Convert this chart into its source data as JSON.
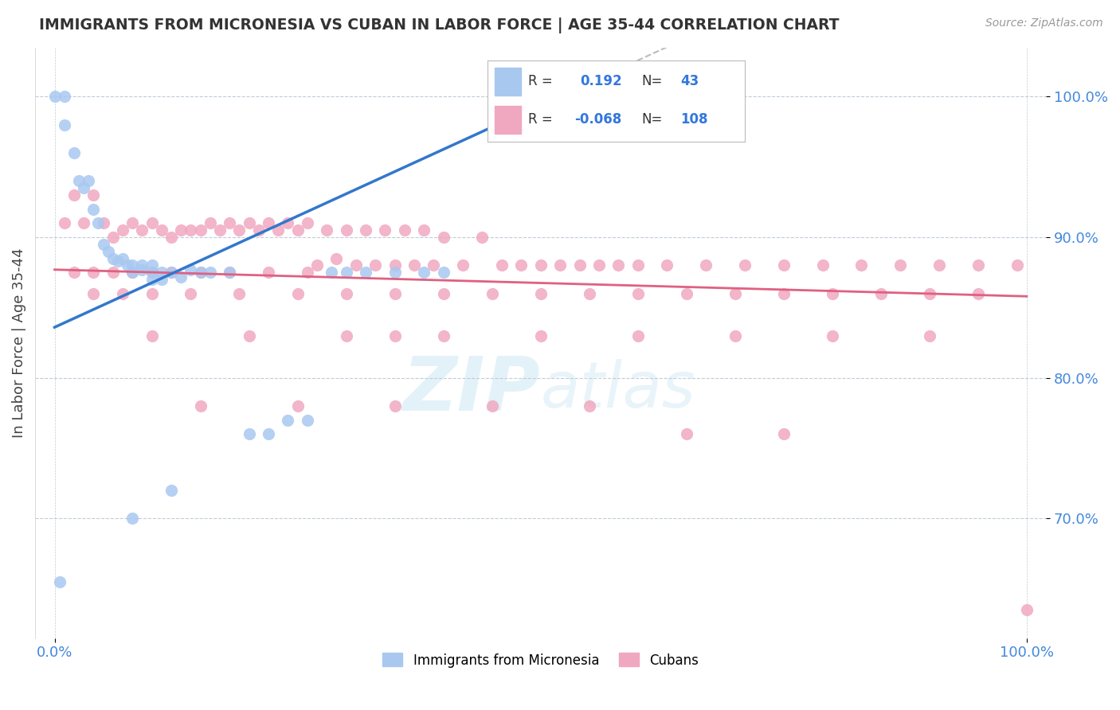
{
  "title": "IMMIGRANTS FROM MICRONESIA VS CUBAN IN LABOR FORCE | AGE 35-44 CORRELATION CHART",
  "source_text": "Source: ZipAtlas.com",
  "ylabel": "In Labor Force | Age 35-44",
  "xlim": [
    -0.02,
    1.02
  ],
  "ylim": [
    0.615,
    1.035
  ],
  "micronesia_R": 0.192,
  "micronesia_N": 43,
  "cuban_R": -0.068,
  "cuban_N": 108,
  "micronesia_color": "#a8c8f0",
  "cuban_color": "#f0a8c0",
  "micronesia_line_color": "#3377cc",
  "cuban_line_color": "#e06080",
  "background_color": "#ffffff",
  "watermark_color": "#cce8f4",
  "ytick_labels": [
    "70.0%",
    "80.0%",
    "90.0%",
    "100.0%"
  ],
  "ytick_values": [
    0.7,
    0.8,
    0.9,
    1.0
  ],
  "xtick_labels": [
    "0.0%",
    "100.0%"
  ],
  "xtick_values": [
    0.0,
    1.0
  ],
  "mic_line_x0": 0.0,
  "mic_line_y0": 0.836,
  "mic_line_x1": 0.55,
  "mic_line_y1": 1.01,
  "cub_line_x0": 0.0,
  "cub_line_y0": 0.877,
  "cub_line_x1": 1.0,
  "cub_line_y1": 0.858,
  "micronesia_x": [
    0.0,
    0.01,
    0.01,
    0.02,
    0.025,
    0.03,
    0.035,
    0.04,
    0.045,
    0.05,
    0.055,
    0.06,
    0.065,
    0.07,
    0.075,
    0.08,
    0.08,
    0.09,
    0.09,
    0.1,
    0.1,
    0.1,
    0.11,
    0.11,
    0.12,
    0.13,
    0.14,
    0.15,
    0.16,
    0.18,
    0.2,
    0.22,
    0.24,
    0.26,
    0.285,
    0.3,
    0.32,
    0.35,
    0.38,
    0.4,
    0.12,
    0.08,
    0.005
  ],
  "micronesia_y": [
    1.0,
    0.98,
    1.0,
    0.96,
    0.94,
    0.935,
    0.94,
    0.92,
    0.91,
    0.895,
    0.89,
    0.885,
    0.883,
    0.885,
    0.88,
    0.88,
    0.875,
    0.877,
    0.88,
    0.875,
    0.87,
    0.88,
    0.875,
    0.87,
    0.875,
    0.872,
    0.877,
    0.875,
    0.875,
    0.875,
    0.76,
    0.76,
    0.77,
    0.77,
    0.875,
    0.875,
    0.875,
    0.875,
    0.875,
    0.875,
    0.72,
    0.7,
    0.655
  ],
  "cuban_x": [
    0.01,
    0.02,
    0.03,
    0.04,
    0.05,
    0.06,
    0.07,
    0.08,
    0.09,
    0.1,
    0.11,
    0.12,
    0.13,
    0.14,
    0.15,
    0.16,
    0.17,
    0.18,
    0.19,
    0.2,
    0.21,
    0.22,
    0.23,
    0.24,
    0.25,
    0.26,
    0.27,
    0.28,
    0.29,
    0.3,
    0.31,
    0.32,
    0.33,
    0.34,
    0.35,
    0.36,
    0.37,
    0.38,
    0.39,
    0.4,
    0.42,
    0.44,
    0.46,
    0.48,
    0.5,
    0.52,
    0.54,
    0.56,
    0.58,
    0.6,
    0.63,
    0.67,
    0.71,
    0.75,
    0.79,
    0.83,
    0.87,
    0.91,
    0.95,
    0.99,
    0.02,
    0.04,
    0.06,
    0.08,
    0.1,
    0.12,
    0.15,
    0.18,
    0.22,
    0.26,
    0.04,
    0.07,
    0.1,
    0.14,
    0.19,
    0.25,
    0.3,
    0.35,
    0.4,
    0.45,
    0.5,
    0.55,
    0.6,
    0.65,
    0.7,
    0.75,
    0.8,
    0.85,
    0.9,
    0.95,
    0.3,
    0.35,
    0.4,
    0.5,
    0.6,
    0.7,
    0.8,
    0.9,
    0.1,
    0.2,
    0.15,
    0.25,
    0.35,
    0.45,
    0.55,
    0.65,
    0.75,
    1.0
  ],
  "cuban_y": [
    0.91,
    0.93,
    0.91,
    0.93,
    0.91,
    0.9,
    0.905,
    0.91,
    0.905,
    0.91,
    0.905,
    0.9,
    0.905,
    0.905,
    0.905,
    0.91,
    0.905,
    0.91,
    0.905,
    0.91,
    0.905,
    0.91,
    0.905,
    0.91,
    0.905,
    0.91,
    0.88,
    0.905,
    0.885,
    0.905,
    0.88,
    0.905,
    0.88,
    0.905,
    0.88,
    0.905,
    0.88,
    0.905,
    0.88,
    0.9,
    0.88,
    0.9,
    0.88,
    0.88,
    0.88,
    0.88,
    0.88,
    0.88,
    0.88,
    0.88,
    0.88,
    0.88,
    0.88,
    0.88,
    0.88,
    0.88,
    0.88,
    0.88,
    0.88,
    0.88,
    0.875,
    0.875,
    0.875,
    0.875,
    0.875,
    0.875,
    0.875,
    0.875,
    0.875,
    0.875,
    0.86,
    0.86,
    0.86,
    0.86,
    0.86,
    0.86,
    0.86,
    0.86,
    0.86,
    0.86,
    0.86,
    0.86,
    0.86,
    0.86,
    0.86,
    0.86,
    0.86,
    0.86,
    0.86,
    0.86,
    0.83,
    0.83,
    0.83,
    0.83,
    0.83,
    0.83,
    0.83,
    0.83,
    0.83,
    0.83,
    0.78,
    0.78,
    0.78,
    0.78,
    0.78,
    0.76,
    0.76,
    0.635
  ]
}
